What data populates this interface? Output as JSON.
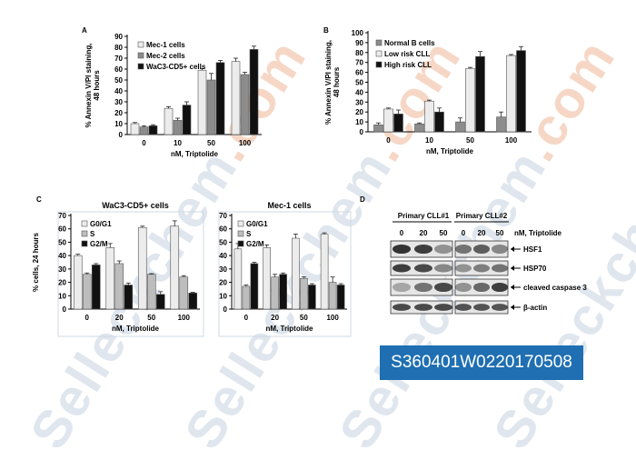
{
  "watermark": {
    "text": "Selleckchem",
    "suffix": ".com"
  },
  "catalog_id": "S360401W0220170508",
  "colors": {
    "white": "#ececec",
    "light": "#bdbdbd",
    "gray": "#8c8c8c",
    "black": "#111111",
    "label_bg": "#1f6fb2"
  },
  "chart_data": [
    {
      "panel": "A",
      "type": "bar",
      "categories": [
        "0",
        "10",
        "50",
        "100"
      ],
      "xlabel": "nM, Triptolide",
      "ylabel": [
        "% Annexin V/PI staining,",
        "48 hours"
      ],
      "ylim": [
        0,
        90
      ],
      "yticks": [
        0,
        10,
        20,
        30,
        40,
        50,
        60,
        70,
        80,
        90
      ],
      "legend": "top-left",
      "series": [
        {
          "name": "Mec-1 cells",
          "color": "#ececec",
          "values": [
            10,
            24,
            59,
            67
          ],
          "errors": [
            1,
            1.5,
            1.5,
            3
          ]
        },
        {
          "name": "Mec-2 cells",
          "color": "#8c8c8c",
          "values": [
            7,
            13,
            50,
            55
          ],
          "errors": [
            1,
            2,
            6,
            2
          ]
        },
        {
          "name": "WaC3-CD5+ cells",
          "color": "#111111",
          "values": [
            8,
            27,
            66,
            78
          ],
          "errors": [
            1,
            3,
            2,
            3
          ]
        }
      ]
    },
    {
      "panel": "B",
      "type": "bar",
      "categories": [
        "0",
        "10",
        "50",
        "100"
      ],
      "xlabel": "nM, Triptolide",
      "ylabel": [
        "% Annexin V/PI staining,",
        "48 hours"
      ],
      "ylim": [
        0,
        100
      ],
      "yticks": [
        0,
        10,
        20,
        30,
        40,
        50,
        60,
        70,
        80,
        90,
        100
      ],
      "legend": "top-left",
      "series": [
        {
          "name": "Normal B cells",
          "color": "#8c8c8c",
          "values": [
            7,
            8,
            10,
            15
          ],
          "errors": [
            2,
            1,
            4,
            5
          ]
        },
        {
          "name": "Low risk CLL",
          "color": "#ececec",
          "values": [
            23,
            31,
            64,
            77
          ],
          "errors": [
            1,
            1,
            1,
            1
          ]
        },
        {
          "name": "High risk CLL",
          "color": "#111111",
          "values": [
            18,
            20,
            76,
            82
          ],
          "errors": [
            4,
            4,
            5,
            4
          ]
        }
      ]
    },
    {
      "panel": "C",
      "title": "WaC3-CD5+ cells",
      "type": "bar",
      "categories": [
        "0",
        "20",
        "50",
        "100"
      ],
      "xlabel": "nM, Triptolide",
      "ylabel": [
        "% cells, 24 hours"
      ],
      "ylim": [
        0,
        70
      ],
      "yticks": [
        0,
        10,
        20,
        30,
        40,
        50,
        60,
        70
      ],
      "legend": "top-left",
      "series": [
        {
          "name": "G0/G1",
          "color": "#ececec",
          "values": [
            40,
            46,
            61,
            62
          ],
          "errors": [
            1,
            3,
            1,
            4
          ]
        },
        {
          "name": "S",
          "color": "#bdbdbd",
          "values": [
            26,
            34,
            26,
            24
          ],
          "errors": [
            1,
            2,
            0.5,
            1
          ]
        },
        {
          "name": "G2/M",
          "color": "#111111",
          "values": [
            33,
            18,
            11,
            12
          ],
          "errors": [
            1,
            1.5,
            2,
            0.5
          ]
        }
      ]
    },
    {
      "panel": "C2",
      "title": "Mec-1 cells",
      "type": "bar",
      "categories": [
        "0",
        "20",
        "50",
        "100"
      ],
      "xlabel": "nM, Triptolide",
      "ylabel": [],
      "ylim": [
        0,
        70
      ],
      "yticks": [
        0,
        10,
        20,
        30,
        40,
        50,
        60,
        70
      ],
      "legend": "top-left",
      "series": [
        {
          "name": "G0/G1",
          "color": "#ececec",
          "values": [
            45,
            46,
            53,
            56
          ],
          "errors": [
            4,
            2,
            3,
            1
          ]
        },
        {
          "name": "S",
          "color": "#bdbdbd",
          "values": [
            17,
            24,
            23,
            20
          ],
          "errors": [
            1,
            2,
            1,
            4
          ]
        },
        {
          "name": "G2/M",
          "color": "#111111",
          "values": [
            34,
            26,
            18,
            18
          ],
          "errors": [
            1,
            1,
            1,
            1
          ]
        }
      ]
    }
  ],
  "panel_labels": {
    "A": "A",
    "B": "B",
    "C": "C",
    "D": "D"
  },
  "blot": {
    "group1": "Primary CLL#1",
    "group2": "Primary CLL#2",
    "doses": [
      "0",
      "20",
      "50"
    ],
    "dose_label": "nM, Triptolide",
    "bands": [
      "HSF1",
      "HSP70",
      "cleaved caspase 3",
      "β-actin"
    ]
  }
}
